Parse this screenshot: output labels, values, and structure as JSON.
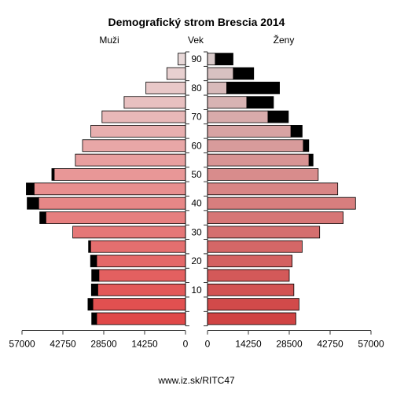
{
  "chart_data": {
    "type": "bar",
    "subtype": "population-pyramid",
    "title": "Demografický strom Brescia 2014",
    "left_label": "Muži",
    "center_label": "Vek",
    "right_label": "Ženy",
    "footer": "www.iz.sk/RITC47",
    "x_range": [
      0,
      57000
    ],
    "x_ticks": [
      "57000",
      "42750",
      "28500",
      "14250",
      "0",
      "0",
      "14250",
      "28500",
      "42750",
      "57000"
    ],
    "age_ticks": [
      "10",
      "20",
      "30",
      "40",
      "50",
      "60",
      "70",
      "80",
      "90"
    ],
    "age_groups": [
      "0-4",
      "5-9",
      "10-14",
      "15-19",
      "20-24",
      "25-29",
      "30-34",
      "35-39",
      "40-44",
      "45-49",
      "50-54",
      "55-59",
      "60-64",
      "65-69",
      "70-74",
      "75-79",
      "80-84",
      "85-89",
      "90+"
    ],
    "series": [
      {
        "name": "Muži",
        "values": [
          31000,
          32300,
          30600,
          30200,
          31000,
          33100,
          39300,
          48700,
          51200,
          52800,
          45800,
          38400,
          35900,
          33000,
          29100,
          21400,
          13800,
          6500,
          2600
        ],
        "excess": [
          1700,
          1700,
          2200,
          2500,
          2100,
          700,
          0,
          2100,
          4000,
          2700,
          800,
          0,
          0,
          0,
          0,
          0,
          0,
          0,
          0
        ]
      },
      {
        "name": "Ženy",
        "values": [
          30800,
          31900,
          30100,
          28500,
          29500,
          33000,
          39100,
          47300,
          51600,
          45400,
          38600,
          35400,
          33400,
          29100,
          21100,
          13700,
          6700,
          9000,
          2700
        ],
        "excess": [
          0,
          0,
          0,
          0,
          0,
          0,
          0,
          0,
          0,
          0,
          0,
          1400,
          1900,
          3900,
          7100,
          9300,
          18400,
          7100,
          6200
        ]
      }
    ],
    "colors": {
      "young": "#e04848",
      "mid": "#e88f8f",
      "old": "#e8d8d8",
      "excess": "#000000"
    },
    "grid": false,
    "legend": "none"
  }
}
